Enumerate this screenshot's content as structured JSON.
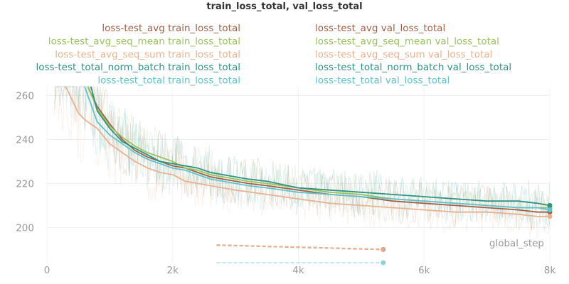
{
  "chart_data": {
    "type": "line",
    "title": "train_loss_total, val_loss_total",
    "xlabel": "global_step",
    "ylabel": "",
    "xlim": [
      0,
      8000
    ],
    "ylim": [
      184,
      264
    ],
    "x_ticks": [
      {
        "value": 0,
        "label": "0"
      },
      {
        "value": 2000,
        "label": "2k"
      },
      {
        "value": 4000,
        "label": "4k"
      },
      {
        "value": 6000,
        "label": "6k"
      },
      {
        "value": 8000,
        "label": "8k"
      }
    ],
    "y_ticks": [
      {
        "value": 200,
        "label": "200"
      },
      {
        "value": 220,
        "label": "220"
      },
      {
        "value": 240,
        "label": "240"
      },
      {
        "value": 260,
        "label": "260"
      }
    ],
    "grid": true,
    "legend_position": "top",
    "series": [
      {
        "name": "loss-test_avg train_loss_total",
        "color": "#a25f45",
        "style": "solid",
        "x": [
          650,
          800,
          1000,
          1200,
          1400,
          1600,
          1800,
          2000,
          2200,
          2400,
          2600,
          2800,
          3000,
          3200,
          3500,
          4000,
          4500,
          5000,
          5500,
          6000,
          6500,
          7000,
          7500,
          7800,
          8000
        ],
        "y": [
          264,
          255,
          247,
          240,
          235,
          232,
          230,
          228,
          227,
          225,
          223,
          222,
          221,
          220,
          219,
          217,
          215,
          214,
          212,
          211,
          210,
          209,
          208,
          207,
          207
        ]
      },
      {
        "name": "loss-test_avg_seq_mean train_loss_total",
        "color": "#9ac25d",
        "style": "solid",
        "x": [
          650,
          800,
          1000,
          1200,
          1400,
          1600,
          1800,
          2000,
          2200,
          2400,
          2600,
          2800,
          3000,
          3200,
          3500,
          4000,
          4500,
          5000,
          5500,
          6000,
          6500,
          7000,
          7500,
          7800,
          8000
        ],
        "y": [
          264,
          254,
          246,
          241,
          237,
          234,
          232,
          230,
          227,
          226,
          224,
          223,
          222,
          221,
          220,
          218,
          216,
          215,
          213,
          212,
          211,
          210,
          209,
          209,
          209
        ]
      },
      {
        "name": "loss-test_avg_seq_sum train_loss_total",
        "color": "#eab18f",
        "style": "solid",
        "x": [
          300,
          400,
          500,
          600,
          800,
          1000,
          1200,
          1400,
          1600,
          1800,
          2000,
          2200,
          2400,
          2600,
          2800,
          3000,
          3500,
          4000,
          4500,
          5000,
          5500,
          6000,
          6500,
          7000,
          7500,
          7800,
          8000
        ],
        "y": [
          264,
          258,
          252,
          249,
          245,
          238,
          234,
          230,
          227,
          225,
          224,
          221,
          220,
          219,
          218,
          217,
          215,
          213,
          211,
          210,
          209,
          208,
          207,
          207,
          206,
          205,
          205
        ]
      },
      {
        "name": "loss-test_total_norm_batch train_loss_total",
        "color": "#2d9382",
        "style": "solid",
        "x": [
          700,
          800,
          1000,
          1200,
          1400,
          1600,
          1800,
          2000,
          2200,
          2400,
          2600,
          2800,
          3000,
          3200,
          3500,
          4000,
          4500,
          5000,
          5500,
          6000,
          6500,
          7000,
          7500,
          7800,
          8000
        ],
        "y": [
          264,
          253,
          245,
          239,
          236,
          233,
          230,
          229,
          228,
          227,
          225,
          224,
          223,
          222,
          221,
          218,
          217,
          216,
          215,
          214,
          213,
          212,
          212,
          211,
          210
        ]
      },
      {
        "name": "loss-test_total train_loss_total",
        "color": "#5dc4cf",
        "style": "solid",
        "x": [
          600,
          700,
          800,
          1000,
          1200,
          1400,
          1600,
          1800,
          2000,
          2200,
          2400,
          2600,
          2800,
          3000,
          3200,
          3500,
          4000,
          4500,
          5000,
          5500,
          6000,
          6500,
          7000,
          7500,
          7800,
          8000
        ],
        "y": [
          264,
          256,
          248,
          242,
          238,
          234,
          231,
          229,
          227,
          226,
          224,
          222,
          221,
          220,
          219,
          218,
          216,
          215,
          214,
          213,
          212,
          211,
          210,
          209,
          209,
          208
        ]
      },
      {
        "name": "loss-test_avg val_loss_total",
        "color": "#a25f45",
        "style": "dashed",
        "x": [
          2700,
          5350
        ],
        "y": [
          192,
          190
        ]
      },
      {
        "name": "loss-test_avg_seq_mean val_loss_total",
        "color": "#9ac25d",
        "style": "dashed",
        "x": [],
        "y": []
      },
      {
        "name": "loss-test_avg_seq_sum val_loss_total",
        "color": "#eab18f",
        "style": "dashed",
        "x": [
          2700,
          5350
        ],
        "y": [
          192,
          190
        ]
      },
      {
        "name": "loss-test_total_norm_batch val_loss_total",
        "color": "#2d9382",
        "style": "dashed",
        "x": [],
        "y": []
      },
      {
        "name": "loss-test_total val_loss_total",
        "color": "#5dc4cf",
        "style": "dashed",
        "x": [
          2700,
          5350
        ],
        "y": [
          183,
          181
        ]
      }
    ]
  }
}
